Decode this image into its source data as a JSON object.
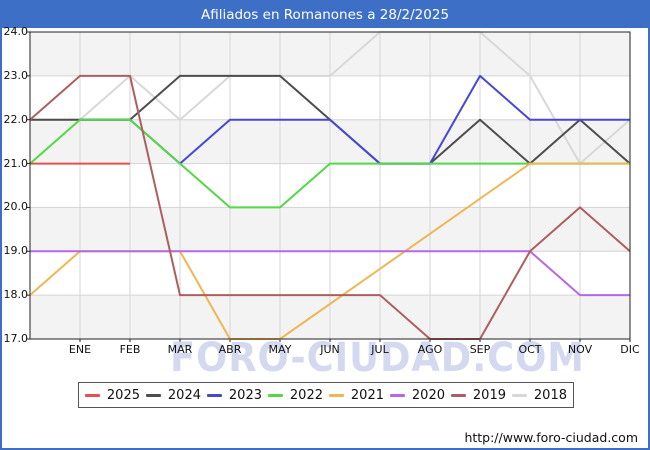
{
  "title_bar": {
    "text": "Afiliados en Romanones a 28/2/2025",
    "bg_color": "#3d6fc7",
    "text_color": "#ffffff"
  },
  "footer": {
    "url": "http://www.foro-ciudad.com"
  },
  "watermark": {
    "text": "FORO-CIUDAD.COM",
    "color": "#b0baE4"
  },
  "chart_data": {
    "type": "line",
    "title": "Afiliados en Romanones a 28/2/2025",
    "x_labels": [
      "ENE",
      "FEB",
      "MAR",
      "ABR",
      "MAY",
      "JUN",
      "JUL",
      "AGO",
      "SEP",
      "OCT",
      "NOV",
      "DIC"
    ],
    "y_tick_labels": [
      "24.0",
      "23.0",
      "22.0",
      "21.0",
      "20.0",
      "19.0",
      "18.0",
      "17.0"
    ],
    "ylim": [
      17,
      24
    ],
    "grid": true,
    "band_color": "#f3f3f3",
    "grid_color": "#d4d4d4",
    "border_color": "#222222",
    "legend_position": "bottom",
    "legend": [
      {
        "label": "2025",
        "color": "#e85050"
      },
      {
        "label": "2024",
        "color": "#4d4d4d"
      },
      {
        "label": "2023",
        "color": "#4747d1"
      },
      {
        "label": "2022",
        "color": "#52d943"
      },
      {
        "label": "2021",
        "color": "#f0b653"
      },
      {
        "label": "2020",
        "color": "#b569e8"
      },
      {
        "label": "2019",
        "color": "#ad5f5f"
      },
      {
        "label": "2018",
        "color": "#d8d8d8"
      }
    ],
    "series": [
      {
        "name": "2025",
        "color": "#e85050",
        "start_value": 21,
        "values": [
          21,
          21,
          null,
          null,
          null,
          null,
          null,
          null,
          null,
          null,
          null,
          null
        ],
        "points": [
          [
            0,
            21
          ],
          [
            1,
            21
          ],
          [
            2,
            21
          ]
        ]
      },
      {
        "name": "2024",
        "color": "#4d4d4d",
        "start_value": 22,
        "values": [
          22,
          22,
          23,
          23,
          23,
          22,
          21,
          21,
          22,
          21,
          22,
          21
        ],
        "points": [
          [
            0,
            22
          ],
          [
            1,
            22
          ],
          [
            2,
            22
          ],
          [
            3,
            23
          ],
          [
            4,
            23
          ],
          [
            5,
            23
          ],
          [
            6,
            22
          ],
          [
            7,
            21
          ],
          [
            8,
            21
          ],
          [
            9,
            22
          ],
          [
            10,
            21
          ],
          [
            11,
            22
          ],
          [
            12,
            21
          ]
        ]
      },
      {
        "name": "2023",
        "color": "#4747d1",
        "start_value": null,
        "values": [
          22,
          22,
          21,
          22,
          22,
          22,
          21,
          21,
          23,
          22,
          22,
          22
        ],
        "points": [
          [
            1,
            22
          ],
          [
            2,
            22
          ],
          [
            3,
            21
          ],
          [
            4,
            22
          ],
          [
            5,
            22
          ],
          [
            6,
            22
          ],
          [
            7,
            21
          ],
          [
            8,
            21
          ],
          [
            9,
            23
          ],
          [
            10,
            22
          ],
          [
            11,
            22
          ],
          [
            12,
            22
          ]
        ]
      },
      {
        "name": "2022",
        "color": "#52d943",
        "start_value": 21,
        "values": [
          22,
          22,
          21,
          20,
          20,
          21,
          21,
          21,
          21,
          21,
          21,
          21
        ],
        "points": [
          [
            0,
            21
          ],
          [
            1,
            22
          ],
          [
            2,
            22
          ],
          [
            3,
            21
          ],
          [
            4,
            20
          ],
          [
            5,
            20
          ],
          [
            6,
            21
          ],
          [
            7,
            21
          ],
          [
            8,
            21
          ],
          [
            9,
            21
          ],
          [
            10,
            21
          ],
          [
            11,
            21
          ],
          [
            12,
            21
          ]
        ]
      },
      {
        "name": "2021",
        "color": "#f0b653",
        "start_value": 18,
        "values": [
          19,
          19,
          19,
          17,
          17,
          17.8,
          18.6,
          19.4,
          20.2,
          21,
          21,
          21
        ],
        "points": [
          [
            0,
            18
          ],
          [
            1,
            19
          ],
          [
            2,
            19
          ],
          [
            3,
            19
          ],
          [
            4,
            17
          ],
          [
            5,
            17
          ],
          [
            10,
            21
          ],
          [
            11,
            21
          ],
          [
            12,
            21
          ]
        ]
      },
      {
        "name": "2020",
        "color": "#b569e8",
        "start_value": 19,
        "values": [
          19,
          19,
          19,
          19,
          19,
          19,
          19,
          19,
          19,
          19,
          18,
          18
        ],
        "points": [
          [
            0,
            19
          ],
          [
            1,
            19
          ],
          [
            2,
            19
          ],
          [
            3,
            19
          ],
          [
            4,
            19
          ],
          [
            5,
            19
          ],
          [
            6,
            19
          ],
          [
            7,
            19
          ],
          [
            8,
            19
          ],
          [
            9,
            19
          ],
          [
            10,
            19
          ],
          [
            11,
            18
          ],
          [
            12,
            18
          ]
        ]
      },
      {
        "name": "2019",
        "color": "#ad5f5f",
        "start_value": 22,
        "values": [
          23,
          23,
          18,
          18,
          18,
          18,
          18,
          17,
          17,
          19,
          20,
          19
        ],
        "points": [
          [
            0,
            22
          ],
          [
            1,
            23
          ],
          [
            2,
            23
          ],
          [
            3,
            18
          ],
          [
            4,
            18
          ],
          [
            5,
            18
          ],
          [
            6,
            18
          ],
          [
            7,
            18
          ],
          [
            8,
            17
          ],
          [
            9,
            17
          ],
          [
            10,
            19
          ],
          [
            11,
            20
          ],
          [
            12,
            19
          ]
        ]
      },
      {
        "name": "2018",
        "color": "#d8d8d8",
        "start_value": 22,
        "values": [
          22,
          23,
          22,
          23,
          23,
          23,
          24,
          24,
          24,
          23,
          21,
          22
        ],
        "points": [
          [
            0,
            22
          ],
          [
            1,
            22
          ],
          [
            2,
            23
          ],
          [
            3,
            22
          ],
          [
            4,
            23
          ],
          [
            5,
            23
          ],
          [
            6,
            23
          ],
          [
            7,
            24
          ],
          [
            8,
            24
          ],
          [
            9,
            24
          ],
          [
            10,
            23
          ],
          [
            11,
            21
          ],
          [
            12,
            22
          ]
        ]
      }
    ],
    "draw_order": [
      "2018",
      "2024",
      "2023",
      "2022",
      "2021",
      "2020",
      "2019",
      "2025"
    ]
  }
}
